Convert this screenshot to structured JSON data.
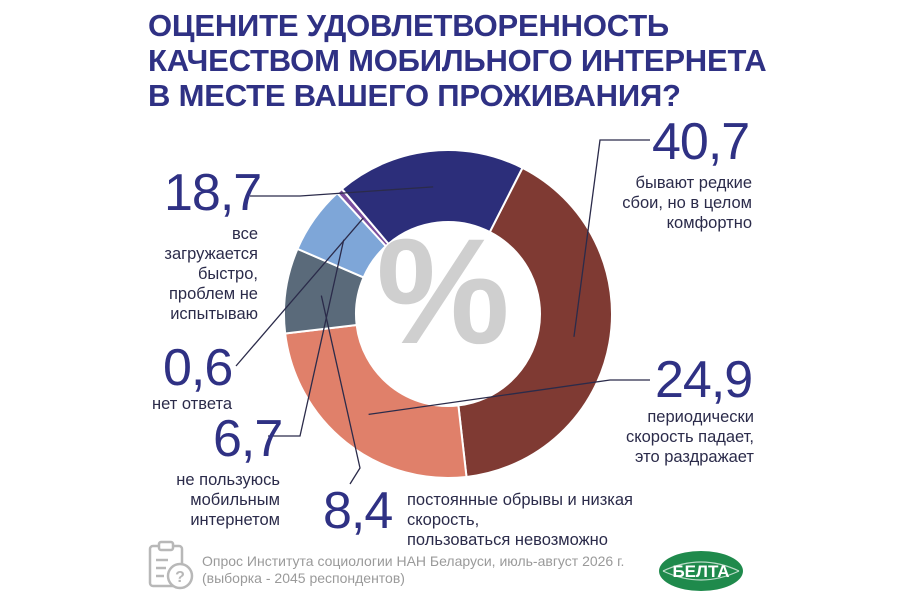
{
  "title_lines": [
    "ОЦЕНИТЕ УДОВЛЕТВОРЕННОСТЬ",
    "КАЧЕСТВОМ МОБИЛЬНОГО ИНТЕРНЕТА",
    "В МЕСТЕ ВАШЕГО ПРОЖИВАНИЯ?"
  ],
  "center_symbol": "%",
  "chart_data": {
    "type": "pie",
    "style": "donut",
    "slices": [
      {
        "value": 40.7,
        "value_label": "40,7",
        "label": "бывают редкие сбои, но в целом комфортно",
        "label_lines": [
          "бывают редкие",
          "сбои, но в целом",
          "комфортно"
        ],
        "color": "#7f3a33"
      },
      {
        "value": 24.9,
        "value_label": "24,9",
        "label": "периодически скорость падает, это раздражает",
        "label_lines": [
          "периодически",
          "скорость падает,",
          "это раздражает"
        ],
        "color": "#e0806a"
      },
      {
        "value": 8.4,
        "value_label": "8,4",
        "label": "постоянные обрывы и низкая скорость, пользоваться невозможно",
        "label_lines": [
          "постоянные обрывы и низкая скорость,",
          "пользоваться невозможно"
        ],
        "color": "#5a6a7a"
      },
      {
        "value": 6.7,
        "value_label": "6,7",
        "label": "не пользуюсь мобильным интернетом",
        "label_lines": [
          "не пользуюсь",
          "мобильным",
          "интернетом"
        ],
        "color": "#7ea6d8"
      },
      {
        "value": 0.6,
        "value_label": "0,6",
        "label": "нет ответа",
        "label_lines": [
          "нет ответа"
        ],
        "color": "#7b4f9e"
      },
      {
        "value": 18.7,
        "value_label": "18,7",
        "label": "все загружается быстро, проблем не испытываю",
        "label_lines": [
          "все",
          "загружается",
          "быстро,",
          "проблем не",
          "испытываю"
        ],
        "color": "#2c2e7a"
      }
    ]
  },
  "source_lines": [
    "Опрос Института социологии НАН Беларуси, июль-август 2026 г.",
    "(выборка - 2045 респондентов)"
  ],
  "logo_text": "БЕЛТА",
  "colors": {
    "title": "#2f3184",
    "logo_green": "#1f8a4c"
  }
}
